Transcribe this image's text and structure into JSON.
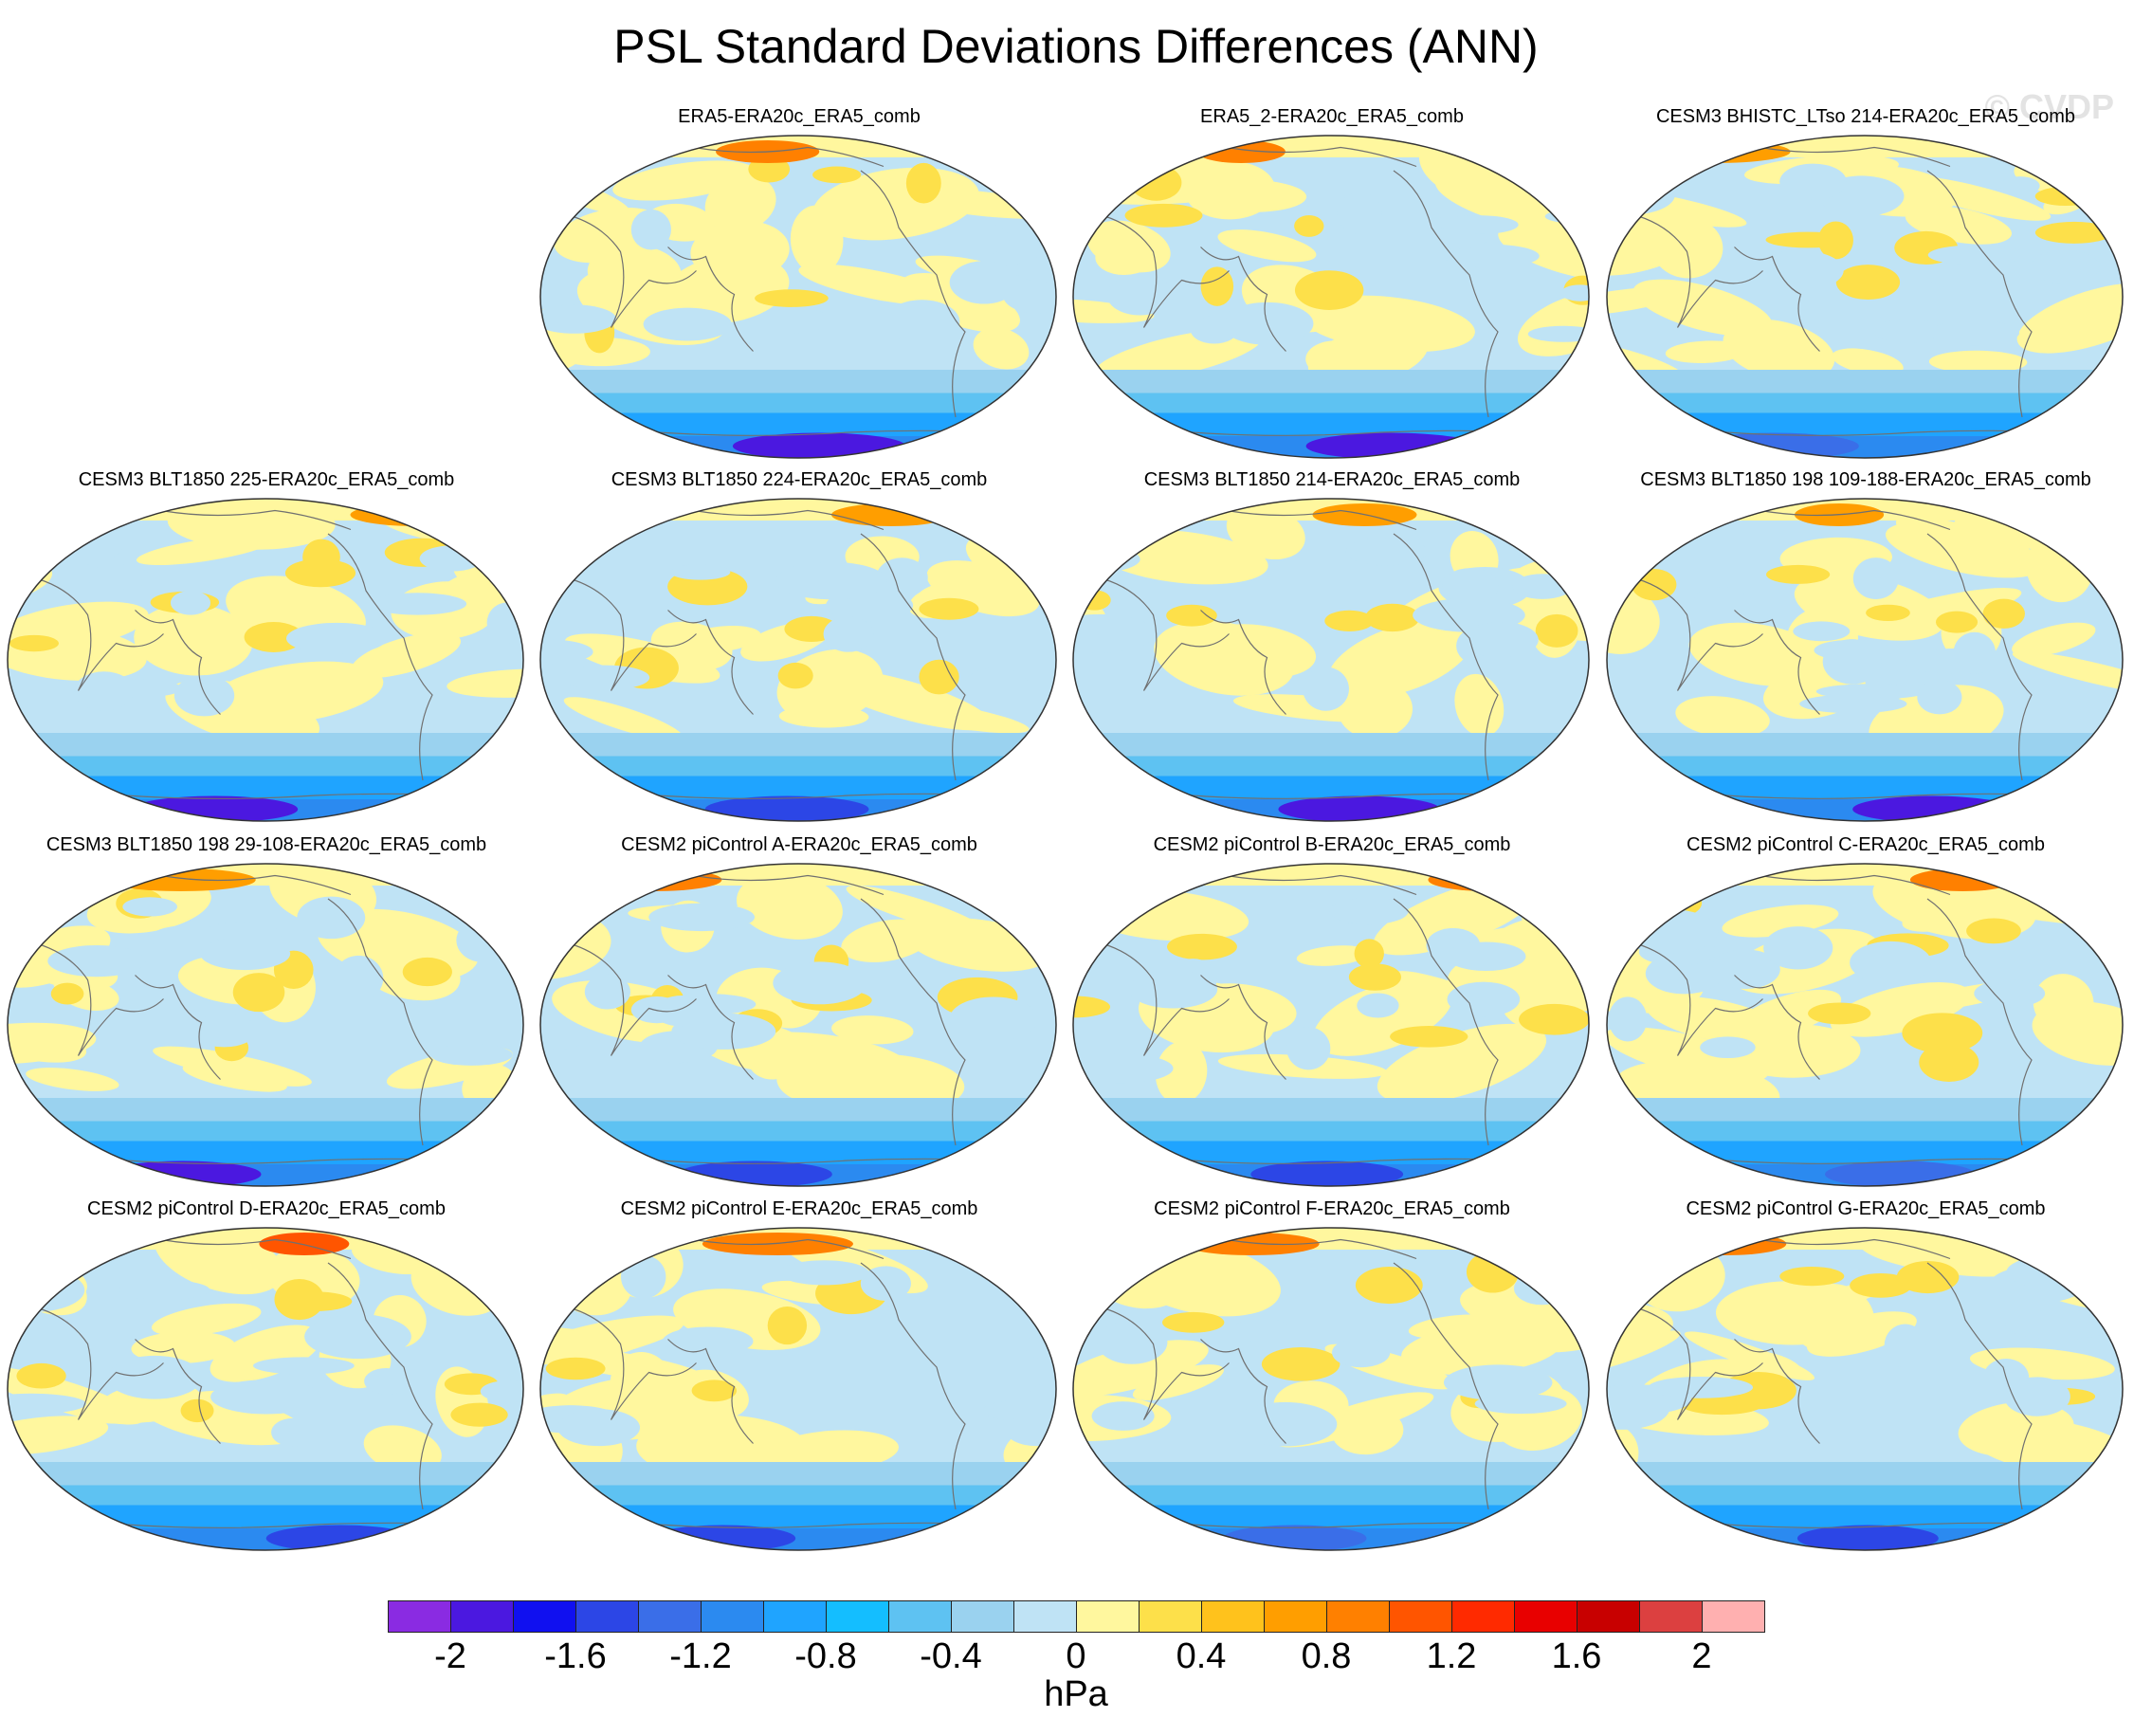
{
  "title": "PSL Standard Deviations Differences (ANN)",
  "watermark": "© CVDP",
  "chart_data": {
    "type": "heatmap",
    "title": "PSL Standard Deviations Differences (ANN)",
    "units": "hPa",
    "projection": "Robinson, Pacific-centered",
    "colorbar": {
      "levels": [
        -2.2,
        -2.0,
        -1.8,
        -1.6,
        -1.4,
        -1.2,
        -1.0,
        -0.8,
        -0.6,
        -0.4,
        -0.2,
        0,
        0.2,
        0.4,
        0.6,
        0.8,
        1.0,
        1.2,
        1.4,
        1.6,
        1.8,
        2.0,
        2.2
      ],
      "tick_labels": [
        "-2",
        "-1.6",
        "-1.2",
        "-0.8",
        "-0.4",
        "0",
        "0.4",
        "0.8",
        "1.2",
        "1.6",
        "2"
      ],
      "colors": [
        "#8a2be2",
        "#4b18e0",
        "#1010f0",
        "#2c46e6",
        "#3a6ee8",
        "#2b8af0",
        "#1fa4ff",
        "#14beff",
        "#5ec2f2",
        "#9ad2ef",
        "#bfe3f5",
        "#fff79e",
        "#fde04a",
        "#ffc21c",
        "#ff9e00",
        "#ff8000",
        "#ff5500",
        "#ff2a00",
        "#e80000",
        "#c80000",
        "#dc4040",
        "#ffb0b0"
      ]
    },
    "panels": [
      {
        "label": "ERA5-ERA20c_ERA5_comb",
        "south_min": -1.9,
        "north_max": 0.9
      },
      {
        "label": "ERA5_2-ERA20c_ERA5_comb",
        "south_min": -2.0,
        "north_max": 0.9
      },
      {
        "label": "CESM3 BHISTC_LTso 214-ERA20c_ERA5_comb",
        "south_min": -1.4,
        "north_max": 0.7
      },
      {
        "label": "CESM3 BLT1850 225-ERA20c_ERA5_comb",
        "south_min": -1.9,
        "north_max": 0.7
      },
      {
        "label": "CESM3 BLT1850 224-ERA20c_ERA5_comb",
        "south_min": -1.5,
        "north_max": 0.7
      },
      {
        "label": "CESM3 BLT1850 214-ERA20c_ERA5_comb",
        "south_min": -2.0,
        "north_max": 0.6
      },
      {
        "label": "CESM3 BLT1850 198 109-188-ERA20c_ERA5_comb",
        "south_min": -1.9,
        "north_max": 0.7
      },
      {
        "label": "CESM3 BLT1850 198 29-108-ERA20c_ERA5_comb",
        "south_min": -1.9,
        "north_max": 0.7
      },
      {
        "label": "CESM2 piControl A-ERA20c_ERA5_comb",
        "south_min": -1.5,
        "north_max": 0.9
      },
      {
        "label": "CESM2 piControl B-ERA20c_ERA5_comb",
        "south_min": -1.5,
        "north_max": 0.9
      },
      {
        "label": "CESM2 piControl C-ERA20c_ERA5_comb",
        "south_min": -1.4,
        "north_max": 0.9
      },
      {
        "label": "CESM2 piControl D-ERA20c_ERA5_comb",
        "south_min": -1.5,
        "north_max": 1.0
      },
      {
        "label": "CESM2 piControl E-ERA20c_ERA5_comb",
        "south_min": -1.5,
        "north_max": 0.8
      },
      {
        "label": "CESM2 piControl F-ERA20c_ERA5_comb",
        "south_min": -1.4,
        "north_max": 0.9
      },
      {
        "label": "CESM2 piControl G-ERA20c_ERA5_comb",
        "south_min": -1.6,
        "north_max": 0.9
      }
    ]
  }
}
